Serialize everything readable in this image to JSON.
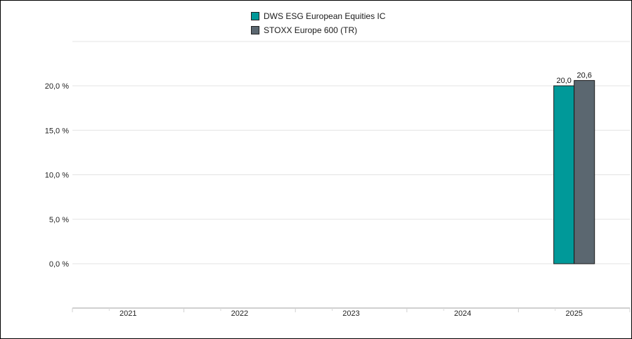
{
  "chart_data": {
    "type": "bar",
    "categories": [
      "2021",
      "2022",
      "2023",
      "2024",
      "2025"
    ],
    "series": [
      {
        "name": "DWS ESG European Equities IC",
        "color": "#009999",
        "values": [
          null,
          null,
          null,
          null,
          20.0
        ],
        "labels": [
          "",
          "",
          "",
          "",
          "20,0"
        ]
      },
      {
        "name": "STOXX Europe 600 (TR)",
        "color": "#5b6770",
        "values": [
          null,
          null,
          null,
          null,
          20.6
        ],
        "labels": [
          "",
          "",
          "",
          "",
          "20,6"
        ]
      }
    ],
    "yticks": [
      {
        "value": 0,
        "label": "0,0 %"
      },
      {
        "value": 5,
        "label": "5,0 %"
      },
      {
        "value": 10,
        "label": "10,0 %"
      },
      {
        "value": 15,
        "label": "15,0 %"
      },
      {
        "value": 20,
        "label": "20,0 %"
      }
    ],
    "ylim": [
      -5,
      25
    ],
    "title": "",
    "xlabel": "",
    "ylabel": "",
    "grid": true,
    "legend_position": "top-center"
  }
}
